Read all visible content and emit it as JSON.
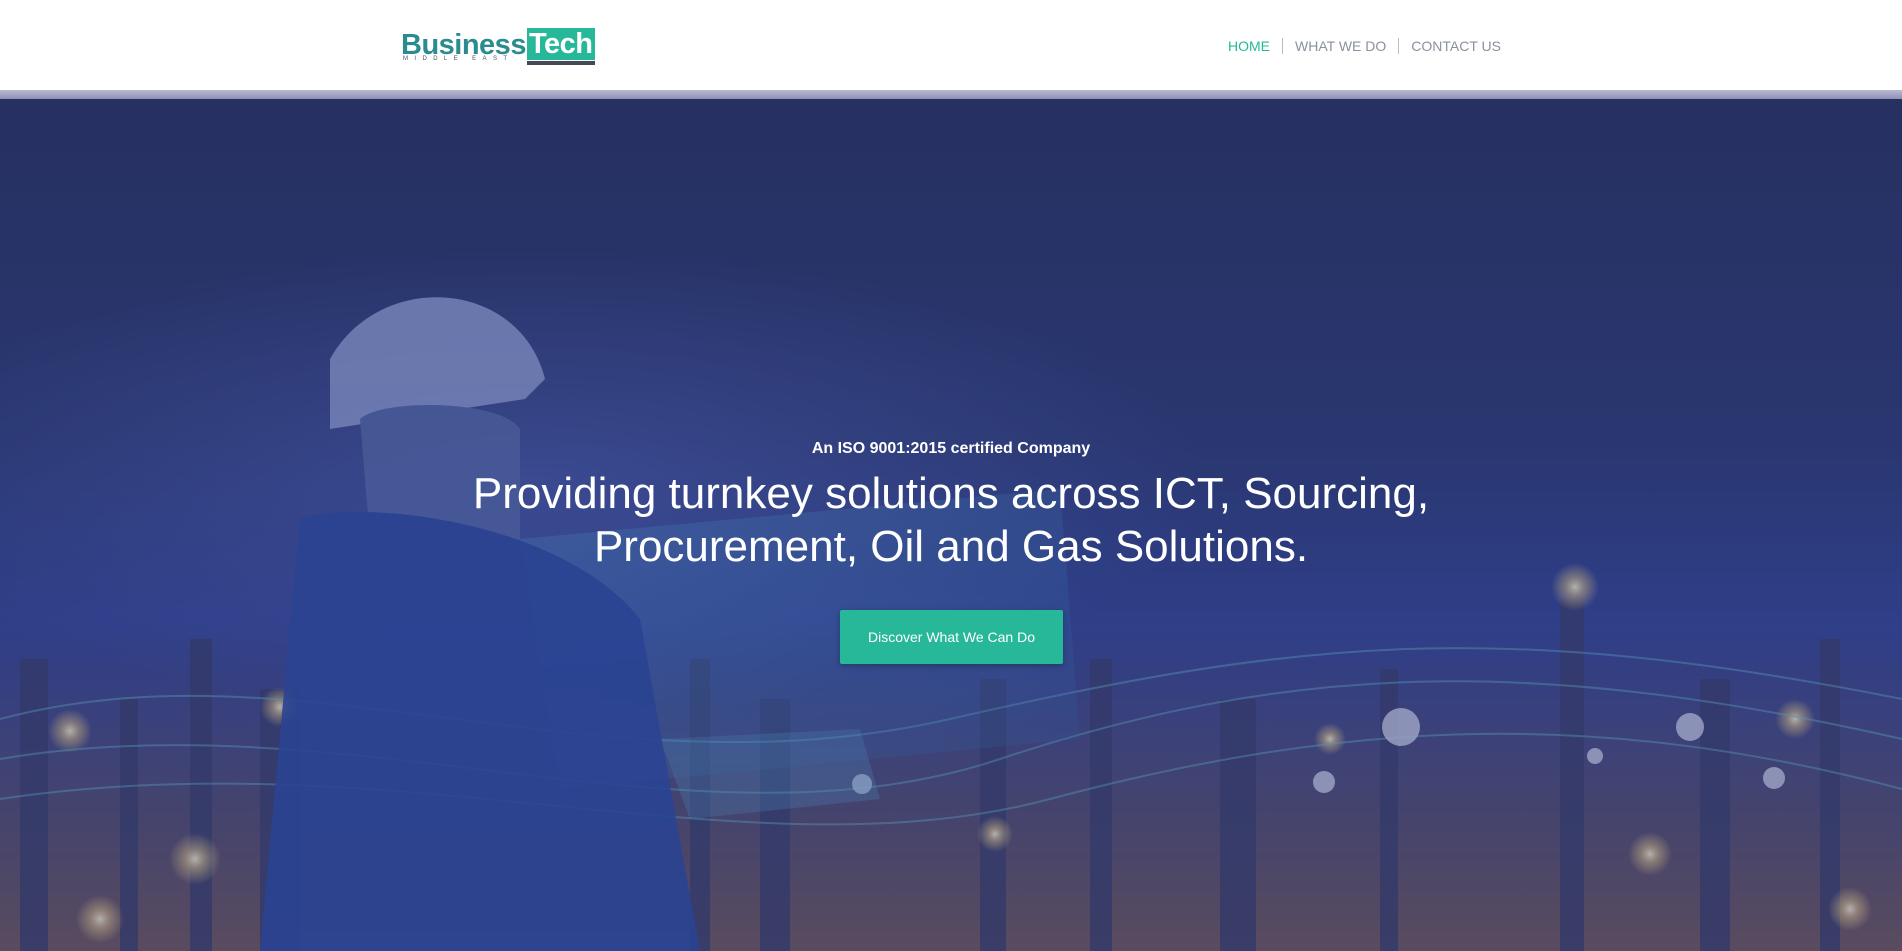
{
  "logo": {
    "primary": "Business",
    "accent": "Tech",
    "sub": "MIDDLE EAST"
  },
  "nav": {
    "items": [
      {
        "label": "HOME",
        "active": true
      },
      {
        "label": "WHAT WE DO",
        "active": false
      },
      {
        "label": "CONTACT US",
        "active": false
      }
    ]
  },
  "hero": {
    "tagline": "An ISO 9001:2015 certified Company",
    "headline_line1": "Providing turnkey solutions across ICT, Sourcing,",
    "headline_line2": "Procurement, Oil and Gas Solutions.",
    "cta_label": "Discover What We Can Do"
  },
  "colors": {
    "accent": "#27b89a",
    "logo_text": "#2a8c8f",
    "nav_text": "#8a919d",
    "hero_overlay": "#2c3a74"
  },
  "icons": {
    "hero_background": "engineer-with-hardhat-and-refinery-night-image"
  }
}
